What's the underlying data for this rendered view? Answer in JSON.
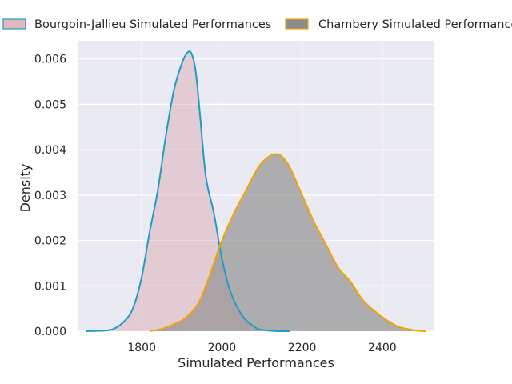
{
  "chart_data": {
    "type": "area",
    "xlabel": "Simulated Performances",
    "ylabel": "Density",
    "xlim": [
      1640,
      2530
    ],
    "ylim": [
      0,
      0.0064
    ],
    "x_ticks": [
      1800,
      2000,
      2200,
      2400
    ],
    "x_tick_labels": [
      "1800",
      "2000",
      "2200",
      "2400"
    ],
    "y_ticks": [
      0,
      0.001,
      0.002,
      0.003,
      0.004,
      0.005,
      0.006
    ],
    "y_tick_labels": [
      "0.000",
      "0.001",
      "0.002",
      "0.003",
      "0.004",
      "0.005",
      "0.006"
    ],
    "grid": true,
    "legend_position": "top",
    "series": [
      {
        "name": "Bourgoin-Jallieu Simulated Performances",
        "line_color": "#1f9bc9",
        "fill_color": "#dba6b0",
        "x": [
          1660,
          1700,
          1730,
          1760,
          1780,
          1800,
          1820,
          1840,
          1860,
          1880,
          1900,
          1915,
          1925,
          1935,
          1945,
          1960,
          1980,
          2000,
          2020,
          2050,
          2080,
          2100,
          2130,
          2170
        ],
        "y": [
          0,
          1e-05,
          5e-05,
          0.00025,
          0.00055,
          0.0012,
          0.0022,
          0.0031,
          0.0043,
          0.0053,
          0.0059,
          0.00615,
          0.0061,
          0.0057,
          0.0048,
          0.0034,
          0.0026,
          0.0016,
          0.0009,
          0.00035,
          0.0001,
          3e-05,
          5e-06,
          0
        ]
      },
      {
        "name": "Chambery Simulated Performances",
        "line_color": "#f5a300",
        "fill_color": "#8c8c8c",
        "x": [
          1820,
          1850,
          1880,
          1910,
          1940,
          1960,
          1980,
          2000,
          2030,
          2060,
          2090,
          2110,
          2130,
          2150,
          2170,
          2190,
          2210,
          2230,
          2260,
          2290,
          2320,
          2350,
          2380,
          2410,
          2440,
          2480,
          2510
        ],
        "y": [
          0,
          5e-05,
          0.00015,
          0.0003,
          0.0006,
          0.001,
          0.0015,
          0.002,
          0.0026,
          0.0031,
          0.0036,
          0.0038,
          0.0039,
          0.00385,
          0.0036,
          0.0032,
          0.0028,
          0.0024,
          0.0019,
          0.0014,
          0.0011,
          0.0007,
          0.00045,
          0.00025,
          0.0001,
          2e-05,
          0
        ]
      }
    ]
  }
}
